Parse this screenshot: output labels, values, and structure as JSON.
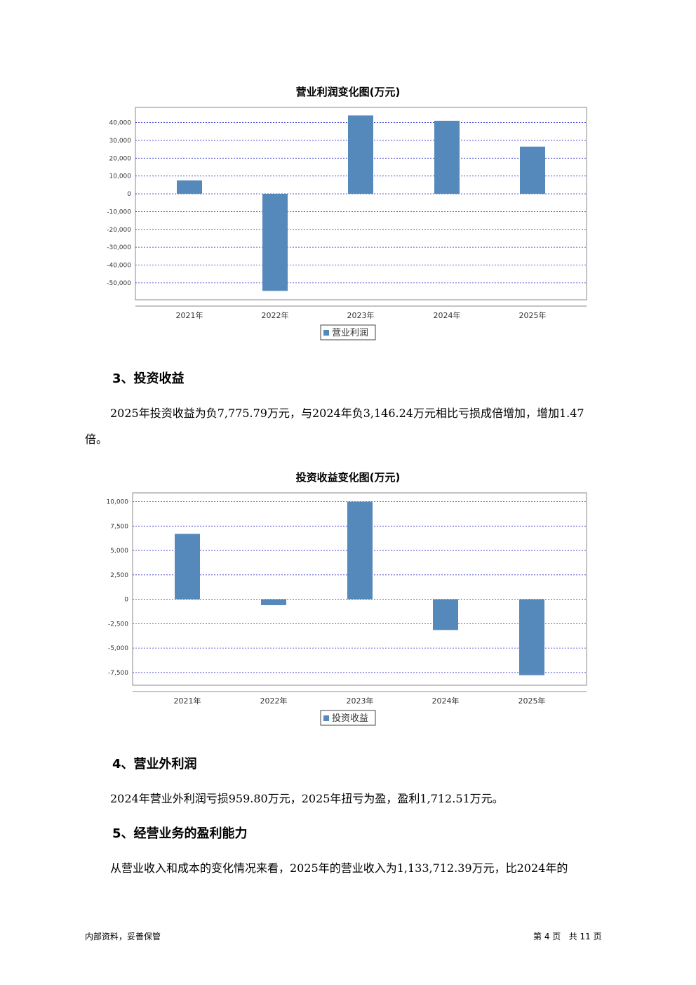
{
  "charts": [
    {
      "title": "营业利润变化图(万元)",
      "legend": "营业利润",
      "tick_labels": [
        "40,000",
        "30,000",
        "20,000",
        "10,000",
        "0",
        "-10,000",
        "-20,000",
        "-30,000",
        "-40,000",
        "-50,000"
      ]
    },
    {
      "title": "投资收益变化图(万元)",
      "legend": "投资收益",
      "tick_labels": [
        "10,000",
        "7,500",
        "5,000",
        "2,500",
        "0",
        "-2,500",
        "-5,000",
        "-7,500"
      ]
    }
  ],
  "chart_data": [
    {
      "type": "bar",
      "title": "营业利润变化图(万元)",
      "categories": [
        "2021年",
        "2022年",
        "2023年",
        "2024年",
        "2025年"
      ],
      "series": [
        {
          "name": "营业利润",
          "values": [
            7500,
            -54500,
            44000,
            41000,
            26500
          ]
        }
      ],
      "ylim": [
        -59500,
        48500
      ],
      "yticks": [
        40000,
        30000,
        20000,
        10000,
        0,
        -10000,
        -20000,
        -30000,
        -40000,
        -50000
      ],
      "grid": true,
      "legend": "bottom-center",
      "color": "#5588bb"
    },
    {
      "type": "bar",
      "title": "投资收益变化图(万元)",
      "categories": [
        "2021年",
        "2022年",
        "2023年",
        "2024年",
        "2025年"
      ],
      "series": [
        {
          "name": "投资收益",
          "values": [
            6700,
            -600,
            10000,
            -3146.24,
            -7775.79
          ]
        }
      ],
      "ylim": [
        -8800,
        10900
      ],
      "yticks": [
        10000,
        7500,
        5000,
        2500,
        0,
        -2500,
        -5000,
        -7500
      ],
      "grid": true,
      "legend": "bottom-center",
      "color": "#5588bb"
    }
  ],
  "section3": {
    "heading": "3、投资收益",
    "para_line1": "2025年投资收益为负7,775.79万元，与2024年负3,146.24万元相比亏损成倍增加，增加1.47",
    "para_line2": "倍。"
  },
  "section4": {
    "heading": "4、营业外利润",
    "para": "2024年营业外利润亏损959.80万元，2025年扭亏为盈，盈利1,712.51万元。"
  },
  "section5": {
    "heading": "5、经营业务的盈利能力",
    "para": "从营业收入和成本的变化情况来看，2025年的营业收入为1,133,712.39万元，比2024年的"
  },
  "footer": {
    "left": "内部资料，妥善保管",
    "right": "第 4 页   共 11 页"
  }
}
